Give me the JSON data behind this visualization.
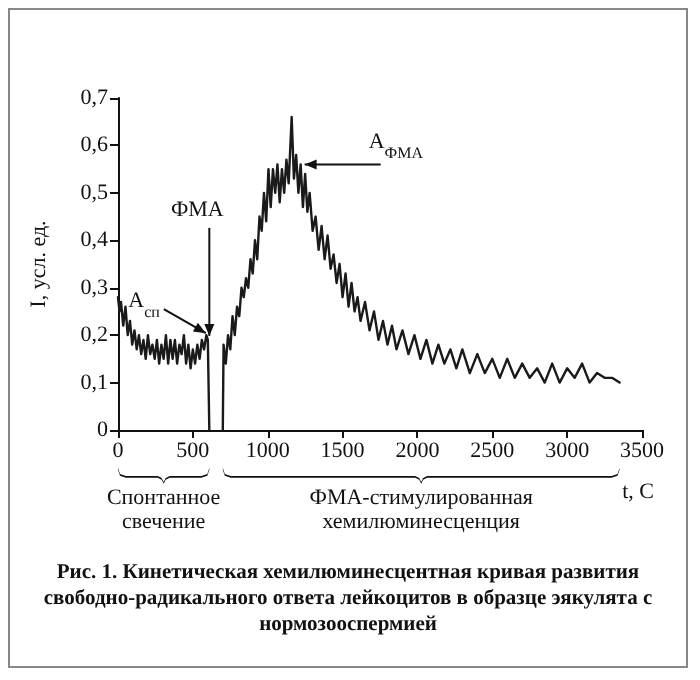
{
  "chart_data": {
    "type": "line",
    "title": "Рис. 1. Кинетическая хемилюминесцентная кривая развития свободно-радикального ответа лейкоцитов в образце эякулята с нормозооспермией",
    "xlabel": "t, С",
    "ylabel": "I, усл. ед.",
    "xlim": [
      0,
      3500
    ],
    "xticks": [
      0,
      500,
      1000,
      1500,
      2000,
      2500,
      3000,
      3500
    ],
    "ylim": [
      0,
      0.7
    ],
    "yticks": [
      0,
      {
        "value": 0.1,
        "label": "0,1"
      },
      {
        "value": 0.2,
        "label": "0,2"
      },
      {
        "value": 0.3,
        "label": "0,3"
      },
      {
        "value": 0.4,
        "label": "0,4"
      },
      {
        "value": 0.5,
        "label": "0,5"
      },
      {
        "value": 0.6,
        "label": "0,6"
      },
      {
        "value": 0.7,
        "label": "0,7"
      }
    ],
    "grid": false,
    "legend": false,
    "marker": "none",
    "line_style": "solid",
    "annotations": [
      {
        "text": "A$_{сп}$",
        "x": 600,
        "y": 0.2
      },
      {
        "text": "ФМА",
        "x": 610,
        "y": 0.19
      },
      {
        "text": "A$_{ФМА}$",
        "x": 1220,
        "y": 0.56
      },
      "Спонтанное свечение",
      "ФМА-стимулированная хемилюминесценция"
    ],
    "series": [
      {
        "color": "#1a1a1a",
        "x": [
          0,
          10,
          20,
          35,
          50,
          65,
          80,
          95,
          110,
          125,
          140,
          155,
          170,
          185,
          200,
          215,
          230,
          245,
          260,
          275,
          290,
          305,
          320,
          335,
          350,
          365,
          380,
          395,
          410,
          425,
          440,
          455,
          470,
          485,
          500,
          515,
          530,
          545,
          560,
          575,
          590,
          600,
          610,
          650,
          700,
          705,
          720,
          735,
          750,
          765,
          780,
          795,
          810,
          825,
          840,
          855,
          870,
          885,
          900,
          915,
          930,
          945,
          960,
          975,
          990,
          1005,
          1020,
          1035,
          1050,
          1065,
          1080,
          1095,
          1110,
          1125,
          1140,
          1160,
          1175,
          1190,
          1205,
          1220,
          1235,
          1250,
          1265,
          1280,
          1300,
          1320,
          1340,
          1360,
          1380,
          1400,
          1420,
          1440,
          1460,
          1480,
          1500,
          1520,
          1540,
          1560,
          1580,
          1600,
          1620,
          1650,
          1680,
          1710,
          1740,
          1770,
          1800,
          1830,
          1860,
          1900,
          1940,
          1980,
          2020,
          2060,
          2100,
          2140,
          2180,
          2220,
          2260,
          2300,
          2350,
          2400,
          2450,
          2500,
          2550,
          2600,
          2650,
          2700,
          2750,
          2800,
          2850,
          2900,
          2950,
          3000,
          3050,
          3100,
          3150,
          3200,
          3250,
          3300,
          3350
        ],
        "values": [
          0.28,
          0.25,
          0.27,
          0.22,
          0.26,
          0.2,
          0.23,
          0.18,
          0.21,
          0.17,
          0.2,
          0.16,
          0.19,
          0.15,
          0.2,
          0.16,
          0.18,
          0.15,
          0.19,
          0.14,
          0.18,
          0.15,
          0.2,
          0.14,
          0.19,
          0.15,
          0.19,
          0.14,
          0.18,
          0.16,
          0.2,
          0.14,
          0.18,
          0.13,
          0.17,
          0.14,
          0.18,
          0.15,
          0.19,
          0.17,
          0.2,
          0.19,
          0,
          null,
          0,
          0.18,
          0.14,
          0.2,
          0.17,
          0.24,
          0.2,
          0.26,
          0.24,
          0.3,
          0.28,
          0.32,
          0.3,
          0.36,
          0.33,
          0.4,
          0.36,
          0.45,
          0.42,
          0.5,
          0.44,
          0.55,
          0.47,
          0.55,
          0.5,
          0.56,
          0.48,
          0.55,
          0.5,
          0.57,
          0.52,
          0.66,
          0.53,
          0.58,
          0.5,
          0.56,
          0.47,
          0.54,
          0.46,
          0.5,
          0.42,
          0.45,
          0.38,
          0.43,
          0.36,
          0.41,
          0.34,
          0.37,
          0.31,
          0.35,
          0.28,
          0.33,
          0.26,
          0.31,
          0.25,
          0.28,
          0.23,
          0.27,
          0.21,
          0.25,
          0.19,
          0.23,
          0.18,
          0.22,
          0.17,
          0.21,
          0.16,
          0.2,
          0.15,
          0.19,
          0.14,
          0.18,
          0.14,
          0.17,
          0.13,
          0.17,
          0.12,
          0.16,
          0.12,
          0.15,
          0.11,
          0.15,
          0.11,
          0.14,
          0.11,
          0.13,
          0.1,
          0.14,
          0.1,
          0.13,
          0.11,
          0.14,
          0.1,
          0.12,
          0.11,
          0.11,
          0.1
        ]
      }
    ]
  }
}
